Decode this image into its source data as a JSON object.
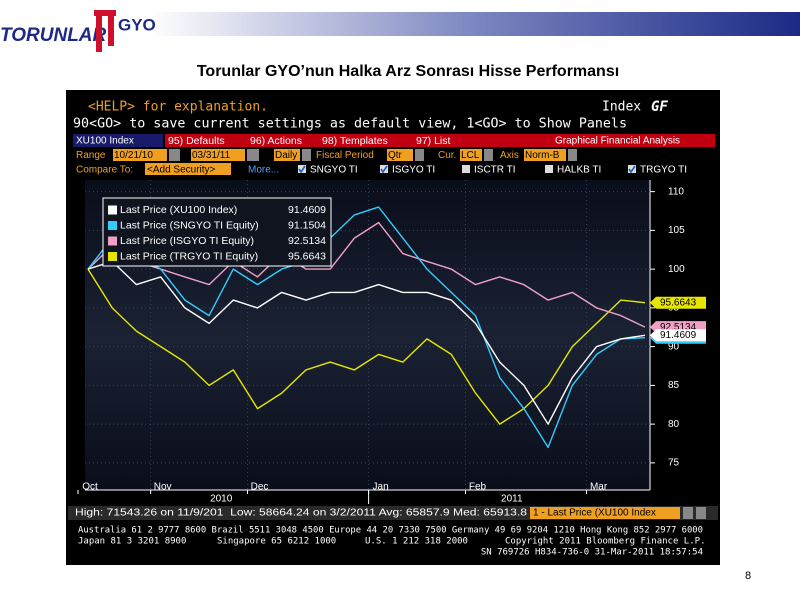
{
  "header": {
    "logo_left": "TORUNLAR",
    "logo_right": "GYO",
    "title": "Torunlar GYO’nun Halka Arz Sonrası Hisse Performansı",
    "page_number": "8"
  },
  "terminal": {
    "help": "<HELP> for explanation.",
    "screen": "Index",
    "screen_code": "GF",
    "hint": "90<GO> to save current settings as default view, 1<GO> to Show Panels",
    "security": "XU100 Index",
    "menu": [
      "95) Defaults",
      "96) Actions",
      "98) Templates",
      "97) List"
    ],
    "menu_title": "Graphical Financial Analysis",
    "range_label": "Range",
    "range_start": "10/21/10",
    "range_end": "03/31/11",
    "period": "Daily",
    "fiscal_label": "Fiscal Period",
    "fiscal": "Qtr",
    "cur_label": "Cur.",
    "cur": "LCL",
    "axis_label": "Axis",
    "axis": "Norm-B",
    "compare_label": "Compare To:",
    "add_security": "<Add Security>",
    "more": "More...",
    "compare": [
      "SNGYO TI",
      "ISGYO TI",
      "ISCTR TI",
      "HALKB TI",
      "TRGYO TI"
    ],
    "compare_checked": [
      true,
      true,
      false,
      false,
      true
    ],
    "stats": "High: 71543.26 on 11/9/201  Low: 58664.24 on 3/2/2011 Avg: 65857.9 Med: 65913.8",
    "stats_tab": "1 - Last Price (XU100 Index",
    "footer": [
      [
        "Australia 61 2 9777 8600 Brazil 5511 3048 4500 Europe 44 20 7330 7500 Germany 49 69 9204 1210 Hong Kong 852 2977 6000"
      ],
      [
        "Japan 81 3 3201 8900",
        "Singapore 65 6212 1000",
        "U.S. 1 212 318 2000",
        "Copyright 2011 Bloomberg Finance L.P."
      ],
      [
        "SN 769726 H834-736-0 31-Mar-2011 18:57:54"
      ]
    ]
  },
  "chart_data": {
    "type": "line",
    "categories": [
      "Oct",
      null,
      null,
      "Nov",
      null,
      null,
      null,
      "Dec",
      null,
      null,
      null,
      null,
      "Jan",
      null,
      null,
      null,
      "Feb",
      null,
      null,
      null,
      null,
      "Mar",
      null,
      null
    ],
    "years": [
      "2010",
      "2011"
    ],
    "series": [
      {
        "name": "Last Price (XU100 Index)",
        "color": "#ffffff",
        "values": [
          100,
          101,
          98,
          99,
          95,
          93,
          96,
          95,
          97,
          96,
          97,
          97,
          98,
          97,
          97,
          96,
          93,
          88,
          85,
          80,
          86,
          90,
          91,
          91.4609
        ]
      },
      {
        "name": "Last Price (SNGYO TI Equity)",
        "color": "#33ccff",
        "values": [
          100,
          104,
          102,
          100,
          96,
          94,
          100,
          98,
          100,
          101,
          104,
          107,
          108,
          104,
          100,
          97,
          94,
          86,
          82,
          77,
          85,
          89,
          91,
          91.1504
        ]
      },
      {
        "name": "Last Price (ISGYO TI Equity)",
        "color": "#f0a0c8",
        "values": [
          100,
          103,
          101,
          100,
          99,
          98,
          101,
          99,
          102,
          100,
          100,
          104,
          106,
          102,
          101,
          100,
          98,
          99,
          98,
          96,
          97,
          95,
          94,
          92.5134
        ]
      },
      {
        "name": "Last Price (TRGYO TI Equity)",
        "color": "#e6e600",
        "values": [
          100,
          95,
          92,
          90,
          88,
          85,
          87,
          82,
          84,
          87,
          88,
          87,
          89,
          88,
          91,
          89,
          84,
          80,
          82,
          85,
          90,
          93,
          96,
          95.6643
        ]
      }
    ],
    "ylim": [
      71.5,
      111.5
    ],
    "yticks": [
      75,
      80,
      85,
      90,
      95,
      100,
      105,
      110
    ],
    "grid": true,
    "legend": "upper left"
  }
}
